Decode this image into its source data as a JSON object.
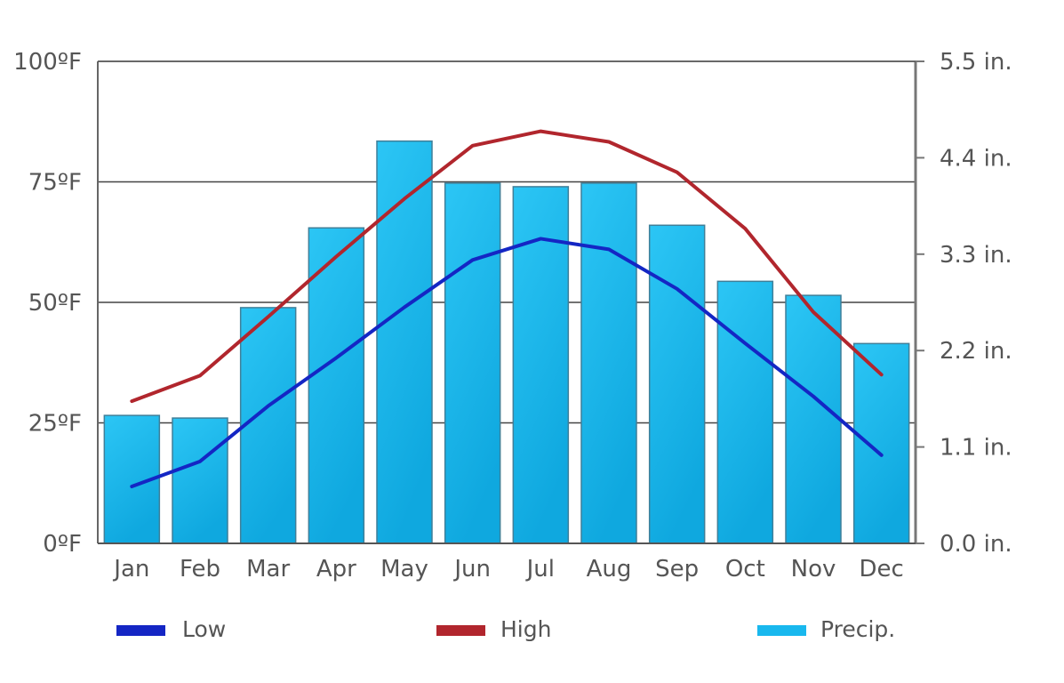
{
  "chart_data": {
    "type": "bar+line",
    "categories": [
      "Jan",
      "Feb",
      "Mar",
      "Apr",
      "May",
      "Jun",
      "Jul",
      "Aug",
      "Sep",
      "Oct",
      "Nov",
      "Dec"
    ],
    "left_axis": {
      "unit": "°F",
      "min": 0,
      "max": 100,
      "ticks": [
        "0ºF",
        "25ºF",
        "50ºF",
        "75ºF",
        "100ºF"
      ],
      "tick_values": [
        0,
        25,
        50,
        75,
        100
      ]
    },
    "right_axis": {
      "unit": "in.",
      "min": 0,
      "max": 5.5,
      "ticks": [
        "0.0 in.",
        "1.1 in.",
        "2.2 in.",
        "3.3 in.",
        "4.4 in.",
        "5.5 in."
      ],
      "tick_values": [
        0,
        1.1,
        2.2,
        3.3,
        4.4,
        5.5
      ]
    },
    "series": [
      {
        "name": "Low",
        "type": "line",
        "axis": "left",
        "color": "#1426c4",
        "values": [
          11.8,
          17.0,
          28.5,
          38.5,
          49.0,
          58.8,
          63.2,
          61.0,
          52.8,
          41.5,
          30.5,
          18.3
        ]
      },
      {
        "name": "High",
        "type": "line",
        "axis": "left",
        "color": "#b1262d",
        "values": [
          29.5,
          34.8,
          47.0,
          59.5,
          71.5,
          82.5,
          85.5,
          83.3,
          77.0,
          65.3,
          48.0,
          35.0
        ]
      },
      {
        "name": "Precip.",
        "type": "bar",
        "axis": "right",
        "color": "#19b8ee",
        "values": [
          1.46,
          1.43,
          2.69,
          3.6,
          4.59,
          4.11,
          4.07,
          4.11,
          3.63,
          2.99,
          2.83,
          2.28
        ]
      }
    ],
    "grid": true,
    "legend": {
      "position": "bottom",
      "items": [
        "Low",
        "High",
        "Precip."
      ]
    }
  }
}
